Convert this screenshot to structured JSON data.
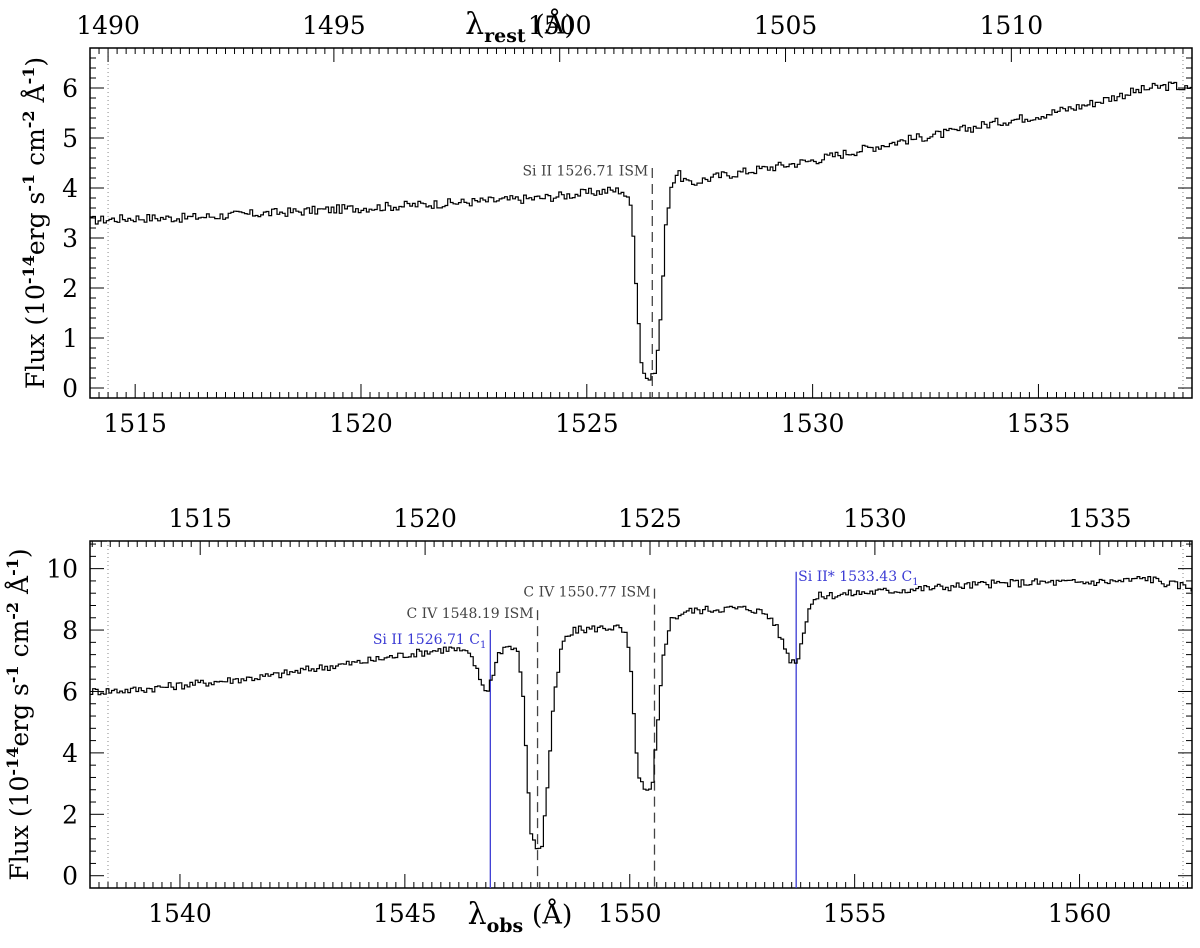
{
  "chart_data": [
    {
      "type": "line",
      "step": true,
      "xlim": [
        1514.0,
        1538.4
      ],
      "ylim": [
        -0.2,
        6.8
      ],
      "x_ticks": [
        1515,
        1520,
        1525,
        1530,
        1535
      ],
      "x_tick_labels": [
        "1515",
        "1520",
        "1525",
        "1530",
        "1535"
      ],
      "y_ticks": [
        0,
        1,
        2,
        3,
        4,
        5,
        6
      ],
      "y_tick_labels": [
        "0",
        "1",
        "2",
        "3",
        "4",
        "5",
        "6"
      ],
      "top_axis": {
        "label": "λ_rest (Å)",
        "ticks": [
          1490,
          1495,
          1500,
          1505,
          1510
        ],
        "tick_labels": [
          "1490",
          "1495",
          "1500",
          "1505",
          "1510"
        ],
        "rest_offset": 24.4
      },
      "ylabel": "Flux (10^-14 erg s^-1 cm^-2 Å^-1)",
      "ylabel_parts": {
        "pre": "Flux (10",
        "e1": "-14",
        "mid1": "erg s",
        "e2": "-1",
        "mid2": " cm",
        "e3": "-2",
        "mid3": " Å",
        "e4": "-1",
        "post": ")"
      },
      "dotted_vlines": [
        1514.4,
        1538.2
      ],
      "annotations": [
        {
          "text": "Si II 1526.71 ISM",
          "x": 1526.45,
          "color": "#444444",
          "style": "dashed",
          "label_y": 4.25,
          "line_top": 4.4
        }
      ],
      "series": [
        {
          "color": "#000000",
          "points": [
            [
              1514.0,
              3.35
            ],
            [
              1515.0,
              3.4
            ],
            [
              1516.0,
              3.4
            ],
            [
              1517.0,
              3.45
            ],
            [
              1518.0,
              3.5
            ],
            [
              1519.0,
              3.55
            ],
            [
              1520.0,
              3.6
            ],
            [
              1521.0,
              3.65
            ],
            [
              1522.0,
              3.7
            ],
            [
              1523.0,
              3.75
            ],
            [
              1524.0,
              3.8
            ],
            [
              1525.0,
              3.9
            ],
            [
              1525.5,
              3.95
            ],
            [
              1525.8,
              3.95
            ],
            [
              1526.0,
              3.6
            ],
            [
              1526.1,
              2.0
            ],
            [
              1526.2,
              0.6
            ],
            [
              1526.3,
              0.2
            ],
            [
              1526.45,
              0.2
            ],
            [
              1526.55,
              0.5
            ],
            [
              1526.65,
              1.6
            ],
            [
              1526.75,
              3.2
            ],
            [
              1526.85,
              4.0
            ],
            [
              1527.0,
              4.3
            ],
            [
              1527.3,
              4.05
            ],
            [
              1527.5,
              4.15
            ],
            [
              1528.0,
              4.25
            ],
            [
              1529.0,
              4.4
            ],
            [
              1530.0,
              4.55
            ],
            [
              1531.0,
              4.75
            ],
            [
              1532.0,
              4.95
            ],
            [
              1533.0,
              5.1
            ],
            [
              1534.0,
              5.3
            ],
            [
              1535.0,
              5.45
            ],
            [
              1536.0,
              5.65
            ],
            [
              1537.0,
              5.9
            ],
            [
              1537.5,
              6.0
            ],
            [
              1538.0,
              6.05
            ],
            [
              1538.4,
              5.95
            ]
          ]
        }
      ]
    },
    {
      "type": "line",
      "step": true,
      "xlim": [
        1538.0,
        1562.5
      ],
      "ylim": [
        -0.4,
        10.9
      ],
      "x_ticks": [
        1540,
        1545,
        1550,
        1555,
        1560
      ],
      "x_tick_labels": [
        "1540",
        "1545",
        "1550",
        "1555",
        "1560"
      ],
      "y_ticks": [
        0,
        2,
        4,
        6,
        8,
        10
      ],
      "y_tick_labels": [
        "0",
        "2",
        "4",
        "6",
        "8",
        "10"
      ],
      "xlabel": "λ_obs (Å)",
      "top_axis": {
        "ticks": [
          1515,
          1520,
          1525,
          1530,
          1535
        ],
        "tick_labels": [
          "1515",
          "1520",
          "1525",
          "1530",
          "1535"
        ],
        "rest_offset": 25.45
      },
      "ylabel": "Flux (10^-14 erg s^-1 cm^-2 Å^-1)",
      "ylabel_parts": {
        "pre": "Flux (10",
        "e1": "-14",
        "mid1": "erg s",
        "e2": "-1",
        "mid2": " cm",
        "e3": "-2",
        "mid3": " Å",
        "e4": "-1",
        "post": ")"
      },
      "dotted_vlines": [
        1538.4,
        1562.3
      ],
      "annotations": [
        {
          "text": "Si II 1526.71 C",
          "sub": "1",
          "x": 1546.9,
          "color": "#3b3bd4",
          "style": "solid",
          "label_y": 7.55,
          "line_top": 8.0
        },
        {
          "text": "C IV 1548.19 ISM",
          "x": 1547.95,
          "color": "#444444",
          "style": "dashed",
          "label_y": 8.4,
          "line_top": 8.65
        },
        {
          "text": "C IV 1550.77 ISM",
          "x": 1550.55,
          "color": "#444444",
          "style": "dashed",
          "label_y": 9.1,
          "line_top": 9.35
        },
        {
          "text": "Si II* 1533.43 C",
          "sub": "1",
          "x": 1553.7,
          "color": "#3b3bd4",
          "style": "solid",
          "label_y": 9.6,
          "line_top": 9.9
        }
      ],
      "series": [
        {
          "color": "#000000",
          "points": [
            [
              1538.0,
              6.0
            ],
            [
              1539.0,
              6.05
            ],
            [
              1540.0,
              6.2
            ],
            [
              1541.0,
              6.35
            ],
            [
              1542.0,
              6.5
            ],
            [
              1543.0,
              6.75
            ],
            [
              1544.0,
              6.95
            ],
            [
              1545.0,
              7.2
            ],
            [
              1545.5,
              7.3
            ],
            [
              1546.0,
              7.4
            ],
            [
              1546.3,
              7.3
            ],
            [
              1546.5,
              7.1
            ],
            [
              1546.7,
              6.3
            ],
            [
              1546.85,
              6.0
            ],
            [
              1547.0,
              6.8
            ],
            [
              1547.1,
              7.3
            ],
            [
              1547.3,
              7.5
            ],
            [
              1547.5,
              7.3
            ],
            [
              1547.6,
              6.5
            ],
            [
              1547.7,
              4.0
            ],
            [
              1547.8,
              1.5
            ],
            [
              1547.9,
              0.9
            ],
            [
              1548.05,
              1.0
            ],
            [
              1548.15,
              2.5
            ],
            [
              1548.3,
              5.5
            ],
            [
              1548.5,
              7.6
            ],
            [
              1548.8,
              8.0
            ],
            [
              1549.2,
              8.05
            ],
            [
              1549.7,
              8.1
            ],
            [
              1549.9,
              7.9
            ],
            [
              1550.0,
              7.2
            ],
            [
              1550.1,
              5.0
            ],
            [
              1550.2,
              3.2
            ],
            [
              1550.35,
              2.7
            ],
            [
              1550.5,
              2.8
            ],
            [
              1550.6,
              4.5
            ],
            [
              1550.75,
              7.2
            ],
            [
              1550.9,
              8.3
            ],
            [
              1551.2,
              8.6
            ],
            [
              1552.0,
              8.7
            ],
            [
              1552.7,
              8.7
            ],
            [
              1553.0,
              8.55
            ],
            [
              1553.2,
              8.3
            ],
            [
              1553.4,
              7.6
            ],
            [
              1553.6,
              6.95
            ],
            [
              1553.75,
              7.1
            ],
            [
              1553.9,
              8.2
            ],
            [
              1554.0,
              8.8
            ],
            [
              1554.2,
              9.1
            ],
            [
              1555.0,
              9.2
            ],
            [
              1556.0,
              9.3
            ],
            [
              1557.0,
              9.4
            ],
            [
              1558.0,
              9.5
            ],
            [
              1559.0,
              9.55
            ],
            [
              1560.0,
              9.55
            ],
            [
              1561.0,
              9.6
            ],
            [
              1561.5,
              9.7
            ],
            [
              1562.0,
              9.5
            ],
            [
              1562.5,
              9.4
            ]
          ]
        }
      ]
    }
  ]
}
